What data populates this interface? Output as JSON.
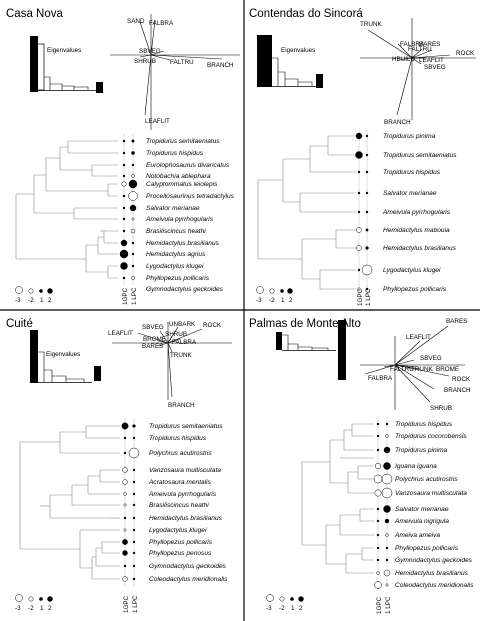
{
  "panels": {
    "casa_nova": {
      "title": "Casa Nova",
      "eigen_label": "Eigenvalues",
      "vars": [
        "SAND",
        "FALBRA",
        "SBVEG",
        "SHRUB",
        "FALTRU",
        "BRANCH",
        "LEAFLIT"
      ],
      "species": [
        "Tropidurus semitaeniatus",
        "Tropidurus hispidus",
        "Eurolophosaurus divaricatus",
        "Notobachia ablephara",
        "Calyptommatus leiolepis",
        "Procellosaurinus tetradactylus",
        "Salvator merianae",
        "Ameivula pyrrhogularis",
        "Brasiliscincus heathi",
        "Hemidactylus brasilianus",
        "Hemidactylus agrius",
        "Lygodactylus klugei",
        "Phyllopezus pollicaris",
        "Gymnodactylus geckoides"
      ],
      "axis_labels": [
        "1GPC",
        "1 LPC"
      ],
      "legend": [
        "-3",
        "-2",
        "1",
        "2"
      ]
    },
    "contendas": {
      "title": "Contendas do Sincorá",
      "eigen_label": "Eigenvalues",
      "vars": [
        "TRUNK",
        "FALBRA",
        "BARES",
        "FALTRU",
        "ROCK",
        "HBUILD",
        "LEAFLIT",
        "SBVEG",
        "BRANCH"
      ],
      "species": [
        "Tropidurus pinima",
        "Tropidurus semitaeniatus",
        "Tropidurus hispidus",
        "Salvator merianae",
        "Ameivula pyrrhogularis",
        "Hemidactylus mabouia",
        "Hemidactylus brasilianus",
        "Lygodactylus klugei",
        "Phyllopezus pollicaris"
      ],
      "axis_labels": [
        "1GPC",
        "1 LPC"
      ],
      "legend": [
        "-3",
        "-2",
        "1",
        "2"
      ]
    },
    "cuite": {
      "title": "Cuité",
      "eigen_label": "Eigenvalues",
      "vars": [
        "LEAFLIT",
        "SBVEG",
        "UNBARK",
        "ROCK",
        "BROME",
        "SHRUB",
        "BARES",
        "FALBRA",
        "TRUNK",
        "BRANCH"
      ],
      "species": [
        "Tropidurus semitaeniatus",
        "Tropidurus hispidus",
        "Polychrus acutirostris",
        "Vanzosaura multiscutata",
        "Acratosaura mentalis",
        "Ameivula pyrrhogularis",
        "Brasiliscincus heathi",
        "Hemidactylus brasilianus",
        "Lygodactylus klugei",
        "Phyllopezus pollicaris",
        "Phyllopezus periosus",
        "Gymnodactylus geckoides",
        "Coleodactylus meridionalis"
      ],
      "axis_labels": [
        "1GPC",
        "1 LPC"
      ],
      "legend": [
        "-3",
        "-2",
        "1",
        "2"
      ]
    },
    "palmas": {
      "title": "Palmas de Monte Alto",
      "eigen_label": "Eigenvalues",
      "vars": [
        "BARES",
        "LEAFLIT",
        "SBVEG",
        "FALTRU",
        "TRUNK",
        "BROME",
        "ROCK",
        "FALBRA",
        "BRANCH",
        "SHRUB"
      ],
      "species": [
        "Tropidurus hispidus",
        "Tropidurus cocorobensis",
        "Tropidurus pinima",
        "Iguana iguana",
        "Polychrus acutirostris",
        "Vanzosaura multiscutata",
        "Salvator merianae",
        "Ameivula nigrigula",
        "Ameiva ameiva",
        "Phyllopezus pollicaris",
        "Gymnodactylus geckoides",
        "Hemidactylus brasilianus",
        "Coleodactylus meridionalis"
      ],
      "axis_labels": [
        "1GPC",
        "1 LPC"
      ],
      "legend": [
        "-3",
        "-2",
        "1",
        "2"
      ]
    }
  }
}
